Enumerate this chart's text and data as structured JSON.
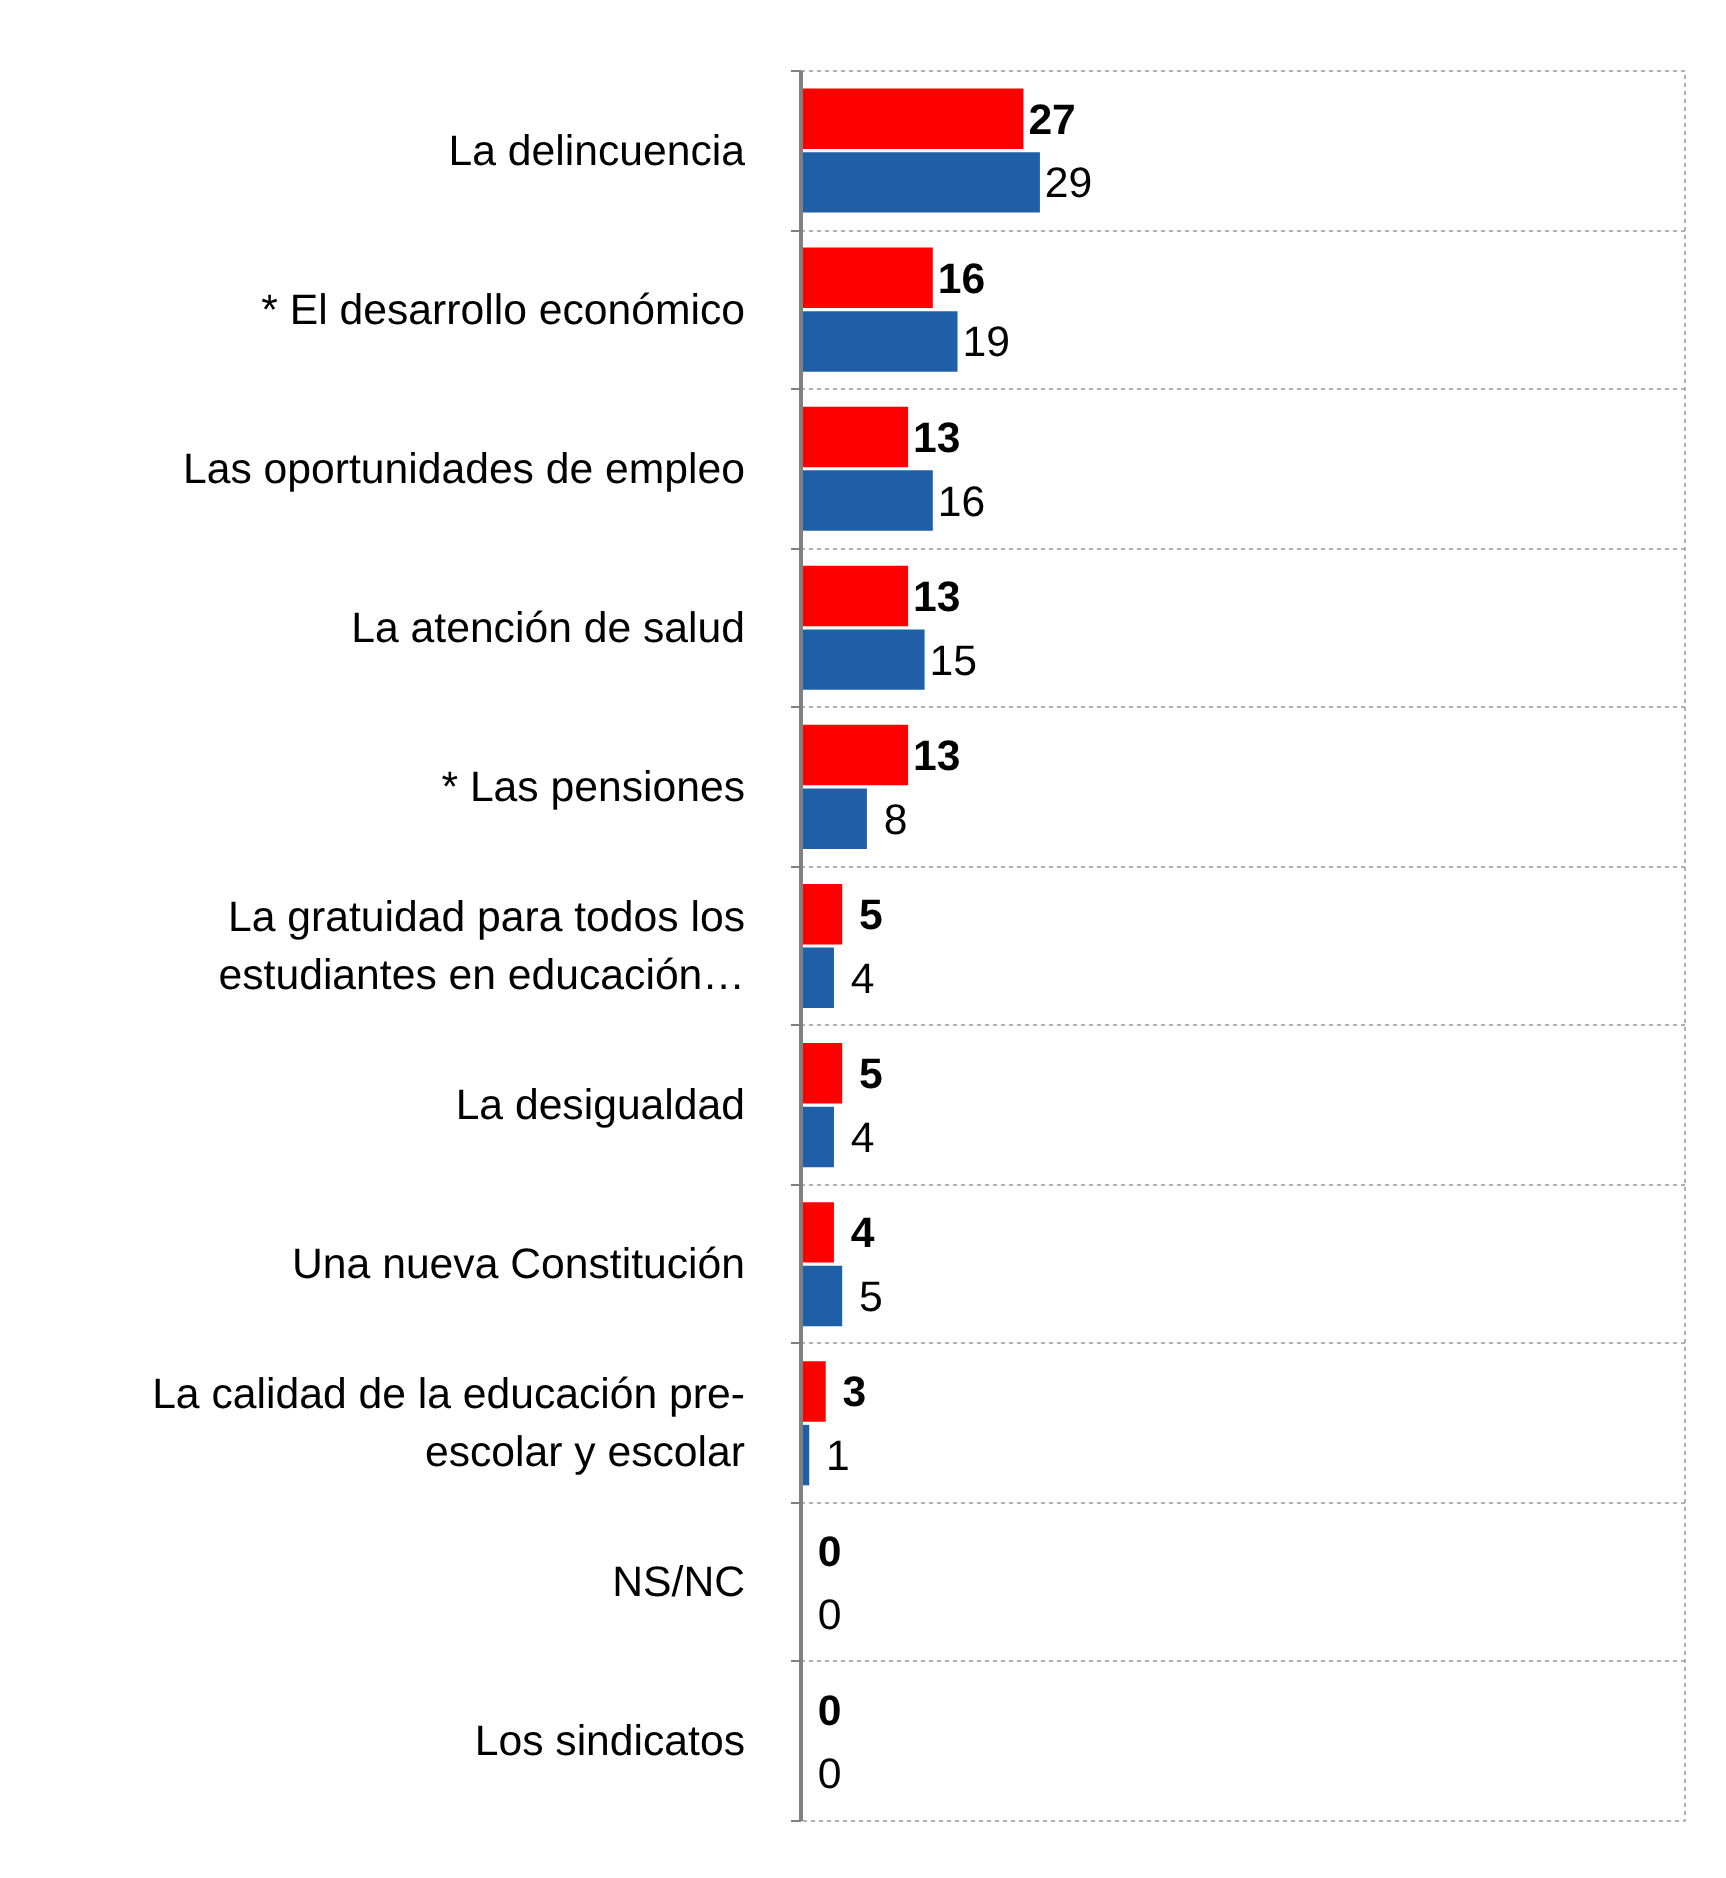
{
  "chart_data": {
    "type": "bar",
    "orientation": "horizontal",
    "data_labels": true,
    "grid": "y",
    "categories": [
      "La delincuencia",
      "* El desarrollo económico",
      "Las oportunidades de empleo",
      "La atención de salud",
      "* Las pensiones",
      "La gratuidad para todos los\nestudiantes en educación…",
      "La desigualdad",
      "Una nueva Constitución",
      "La calidad de la educación pre-\nescolar y escolar",
      "NS/NC",
      "Los sindicatos"
    ],
    "series": [
      {
        "color": "#ff0000",
        "values": [
          27,
          16,
          13,
          13,
          13,
          5,
          5,
          4,
          3,
          0,
          0
        ]
      },
      {
        "color": "#1f5fa8",
        "values": [
          29,
          19,
          16,
          15,
          8,
          4,
          4,
          5,
          1,
          0,
          0
        ]
      }
    ]
  }
}
